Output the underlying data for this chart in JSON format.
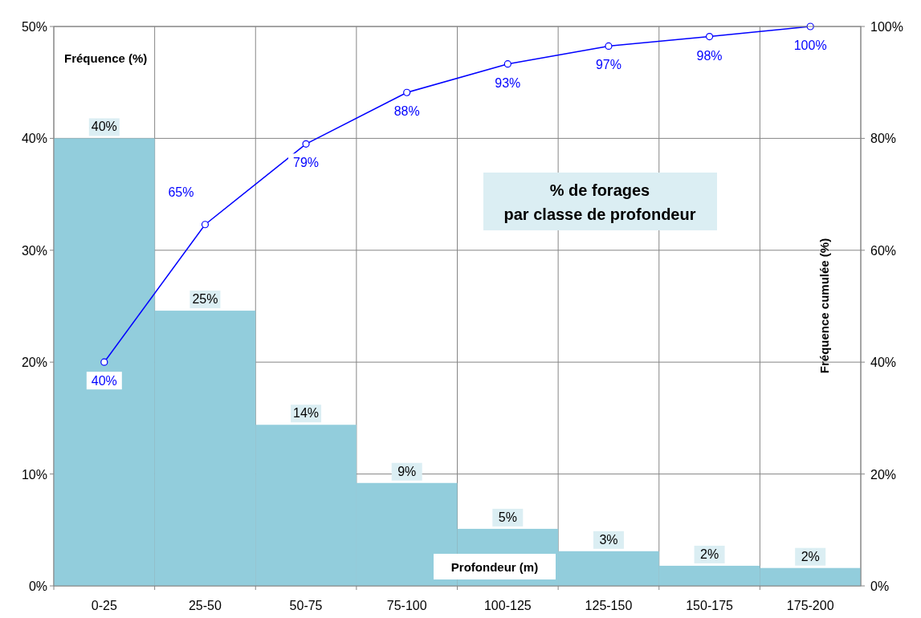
{
  "chart_data": {
    "type": "bar",
    "title": "% de forages\npar classe de profondeur",
    "xlabel": "Profondeur (m)",
    "ylabel": "Fréquence (%)",
    "y2label": "Fréquence cumulée (%)",
    "categories": [
      "0-25",
      "25-50",
      "50-75",
      "75-100",
      "100-125",
      "125-150",
      "150-175",
      "175-200"
    ],
    "series": [
      {
        "color": "#92cddc",
        "values": [
          40,
          24.6,
          14.4,
          9.2,
          5.1,
          3.1,
          1.8,
          1.6
        ],
        "value_labels": [
          "40%",
          "25%",
          "14%",
          "9%",
          "5%",
          "3%",
          "2%",
          "2%"
        ]
      },
      {
        "type": "line",
        "axis": "y2",
        "color": "#0000ff",
        "marker": "circle",
        "values": [
          40,
          64.6,
          79,
          88.2,
          93.3,
          96.5,
          98.2,
          100
        ],
        "value_labels": [
          "40%",
          "65%",
          "79%",
          "88%",
          "93%",
          "97%",
          "98%",
          "100%"
        ]
      }
    ],
    "ylim": [
      0,
      50
    ],
    "yticks": [
      {
        "value": 0,
        "label": "0%"
      },
      {
        "value": 10,
        "label": "10%"
      },
      {
        "value": 20,
        "label": "20%"
      },
      {
        "value": 30,
        "label": "30%"
      },
      {
        "value": 40,
        "label": "40%"
      },
      {
        "value": 50,
        "label": "50%"
      }
    ],
    "y2lim": [
      0,
      100
    ],
    "y2ticks": [
      {
        "value": 0,
        "label": "0%"
      },
      {
        "value": 20,
        "label": "20%"
      },
      {
        "value": 40,
        "label": "40%"
      },
      {
        "value": 60,
        "label": "60%"
      },
      {
        "value": 80,
        "label": "80%"
      },
      {
        "value": 100,
        "label": "100%"
      }
    ],
    "grid": true
  }
}
